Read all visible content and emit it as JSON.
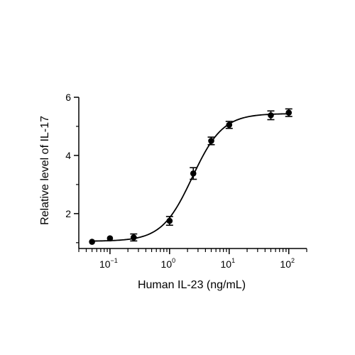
{
  "chart_data": {
    "type": "scatter",
    "title": "",
    "xlabel": "Human IL-23 (ng/mL)",
    "ylabel": "Relative level of IL-17",
    "x_scale": "log",
    "xlim": [
      0.03,
      200
    ],
    "ylim": [
      0.8,
      6
    ],
    "x_ticks": [
      {
        "base": "10",
        "exp": "−1",
        "value": 0.1
      },
      {
        "base": "10",
        "exp": "0",
        "value": 1
      },
      {
        "base": "10",
        "exp": "1",
        "value": 10
      },
      {
        "base": "10",
        "exp": "2",
        "value": 100
      }
    ],
    "y_ticks": [
      {
        "label": "2",
        "value": 2
      },
      {
        "label": "4",
        "value": 4
      },
      {
        "label": "6",
        "value": 6
      }
    ],
    "grid": false,
    "legend": "none",
    "series": [
      {
        "points": [
          {
            "x": 0.05,
            "y": 1.03,
            "err": 0.03
          },
          {
            "x": 0.1,
            "y": 1.15,
            "err": 0.03
          },
          {
            "x": 0.25,
            "y": 1.18,
            "err": 0.12
          },
          {
            "x": 1,
            "y": 1.75,
            "err": 0.15
          },
          {
            "x": 2.5,
            "y": 3.38,
            "err": 0.2
          },
          {
            "x": 5,
            "y": 4.5,
            "err": 0.13
          },
          {
            "x": 10,
            "y": 5.05,
            "err": 0.12
          },
          {
            "x": 50,
            "y": 5.38,
            "err": 0.15
          },
          {
            "x": 100,
            "y": 5.47,
            "err": 0.13
          }
        ],
        "fit": {
          "bottom": 1.05,
          "top": 5.44,
          "ec50": 2.4,
          "hill": 1.7
        }
      }
    ],
    "colors": {
      "marker": "#000000",
      "line": "#000000",
      "axis": "#000000"
    }
  }
}
